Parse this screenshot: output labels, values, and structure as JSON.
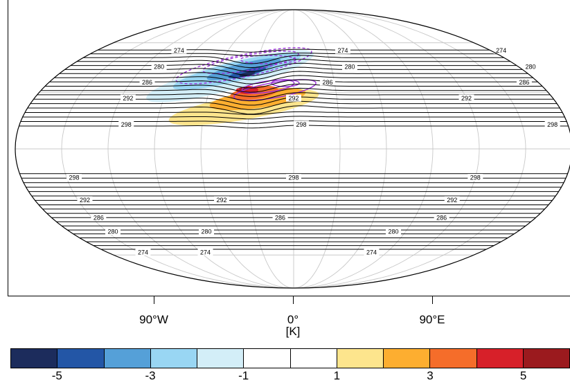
{
  "map": {
    "projection": "mollweide",
    "graticule": true,
    "contour_color": "#000000",
    "anomaly_line_color": "#9b30d9"
  },
  "lon_ticks": [
    {
      "lon": -90,
      "label": "90°W"
    },
    {
      "lon": 0,
      "label": "0°"
    },
    {
      "lon": 90,
      "label": "90°E"
    }
  ],
  "contour_labels": {
    "north": [
      {
        "value": "274",
        "lat": 55,
        "lons": [
          -105,
          45,
          190
        ]
      },
      {
        "value": "280",
        "lat": 45,
        "lons": [
          -108,
          45,
          190
        ]
      },
      {
        "value": "286",
        "lat": 36,
        "lons": [
          -108,
          25,
          170
        ]
      },
      {
        "value": "292",
        "lat": 27,
        "lons": [
          -115,
          0,
          120
        ]
      },
      {
        "value": "298",
        "lat": 13,
        "lons": [
          -110,
          5,
          170
        ]
      }
    ],
    "south": [
      {
        "value": "298",
        "lat": -15,
        "lons": [
          -145,
          0,
          120
        ]
      },
      {
        "value": "292",
        "lat": -27,
        "lons": [
          -145,
          -50,
          110
        ]
      },
      {
        "value": "286",
        "lat": -37,
        "lons": [
          -145,
          -10,
          110
        ]
      },
      {
        "value": "280",
        "lat": -45,
        "lons": [
          -145,
          -70,
          80
        ]
      },
      {
        "value": "274",
        "lat": -58,
        "lons": [
          -145,
          -85,
          75
        ]
      }
    ]
  },
  "units": "[K]",
  "colorbar": {
    "colors": [
      "#1c2c5c",
      "#2356a6",
      "#55a0d8",
      "#99d6f3",
      "#d3eef8",
      "#ffffff",
      "#ffffff",
      "#fde58d",
      "#fdae30",
      "#f56d2a",
      "#d72029",
      "#9b1a1e"
    ],
    "labels": [
      {
        "text": "-5",
        "boundary": 1
      },
      {
        "text": "-3",
        "boundary": 3
      },
      {
        "text": "-1",
        "boundary": 5
      },
      {
        "text": "1",
        "boundary": 7
      },
      {
        "text": "3",
        "boundary": 9
      },
      {
        "text": "5",
        "boundary": 11
      }
    ]
  }
}
